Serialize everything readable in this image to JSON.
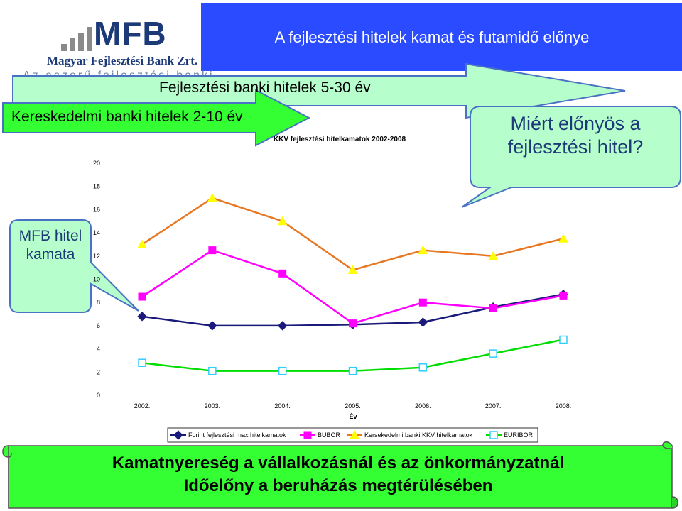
{
  "header": {
    "logo_brand": "MFB",
    "logo_subtitle": "Magyar Fejlesztési Bank Zrt.",
    "title": "A fejlesztési  hitelek kamat és futamidő előnye",
    "background_ghost_text": "Az aszerű fejlesztési banki"
  },
  "arrows": {
    "development_loans": "Fejlesztési banki hitelek 5-30 év",
    "commercial_loans": "Kereskedelmi banki hitelek 2-10 év"
  },
  "callouts": {
    "why_advantageous": "Miért előnyös a fejlesztési hitel?",
    "mfb_rate": "MFB hitel kamata"
  },
  "chart_data": {
    "type": "line",
    "title": "KKV fejlesztési hitelkamatok 2002-2008",
    "xlabel": "Év",
    "ylabel": "",
    "categories": [
      "2002.",
      "2003.",
      "2004.",
      "2005.",
      "2006.",
      "2007.",
      "2008."
    ],
    "ylim": [
      0,
      20
    ],
    "yticks": [
      0,
      2,
      4,
      6,
      8,
      10,
      12,
      14,
      16,
      18,
      20
    ],
    "grid": false,
    "legend_position": "bottom",
    "series": [
      {
        "name": "Forint fejlesztési max  hitelkamatok",
        "values": [
          6.8,
          6.0,
          6.0,
          6.1,
          6.3,
          7.6,
          8.7
        ],
        "color": "#1a1a7a",
        "marker": "diamond"
      },
      {
        "name": "BUBOR",
        "values": [
          8.5,
          12.5,
          10.5,
          6.2,
          8.0,
          7.5,
          8.6
        ],
        "color": "#ff00ff",
        "marker": "square"
      },
      {
        "name": "Kersekedelmi banki KKV hitelkamatok",
        "values": [
          13.0,
          17.0,
          15.0,
          10.8,
          12.5,
          12.0,
          13.5
        ],
        "color": "#e87722",
        "marker": "triangle"
      },
      {
        "name": "EURIBOR",
        "values": [
          2.8,
          2.1,
          2.1,
          2.1,
          2.4,
          3.6,
          4.8
        ],
        "color": "#00dd00",
        "marker": "open-square"
      }
    ]
  },
  "footer": {
    "line1": "Kamatnyereség  a vállalkozásnál és az önkormányzatnál",
    "line2": "Időelőny  a beruházás megtérülésében"
  }
}
